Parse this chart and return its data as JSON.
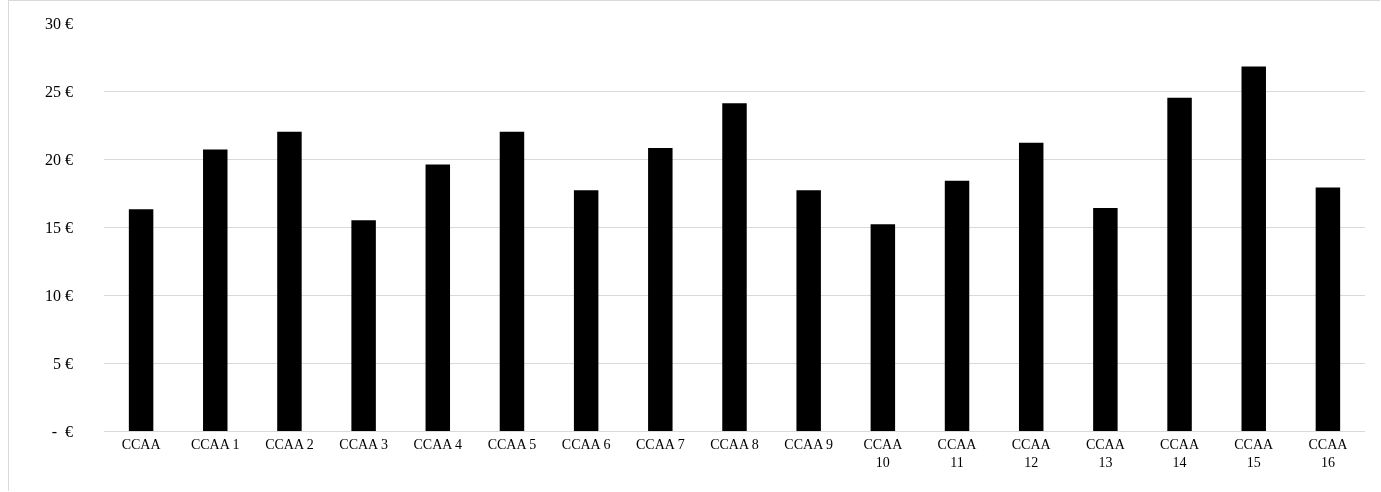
{
  "chart_data": {
    "type": "bar",
    "categories": [
      "CCAA",
      "CCAA 1",
      "CCAA 2",
      "CCAA 3",
      "CCAA 4",
      "CCAA 5",
      "CCAA 6",
      "CCAA 7",
      "CCAA 8",
      "CCAA 9",
      "CCAA 10",
      "CCAA 11",
      "CCAA 12",
      "CCAA 13",
      "CCAA 14",
      "CCAA 15",
      "CCAA 16"
    ],
    "values": [
      16.3,
      20.7,
      22.0,
      15.5,
      19.6,
      22.0,
      17.7,
      20.8,
      24.1,
      17.7,
      15.2,
      18.4,
      21.2,
      16.4,
      24.5,
      26.8,
      17.9
    ],
    "color": "#000000",
    "ylim": [
      0,
      30
    ],
    "yticks": [
      {
        "value": 0,
        "label": "-  €"
      },
      {
        "value": 5,
        "label": "5 €"
      },
      {
        "value": 10,
        "label": "10 €"
      },
      {
        "value": 15,
        "label": "15 €"
      },
      {
        "value": 20,
        "label": "20 €"
      },
      {
        "value": 25,
        "label": "25 €"
      },
      {
        "value": 30,
        "label": "30 €"
      }
    ],
    "grid": "y"
  }
}
